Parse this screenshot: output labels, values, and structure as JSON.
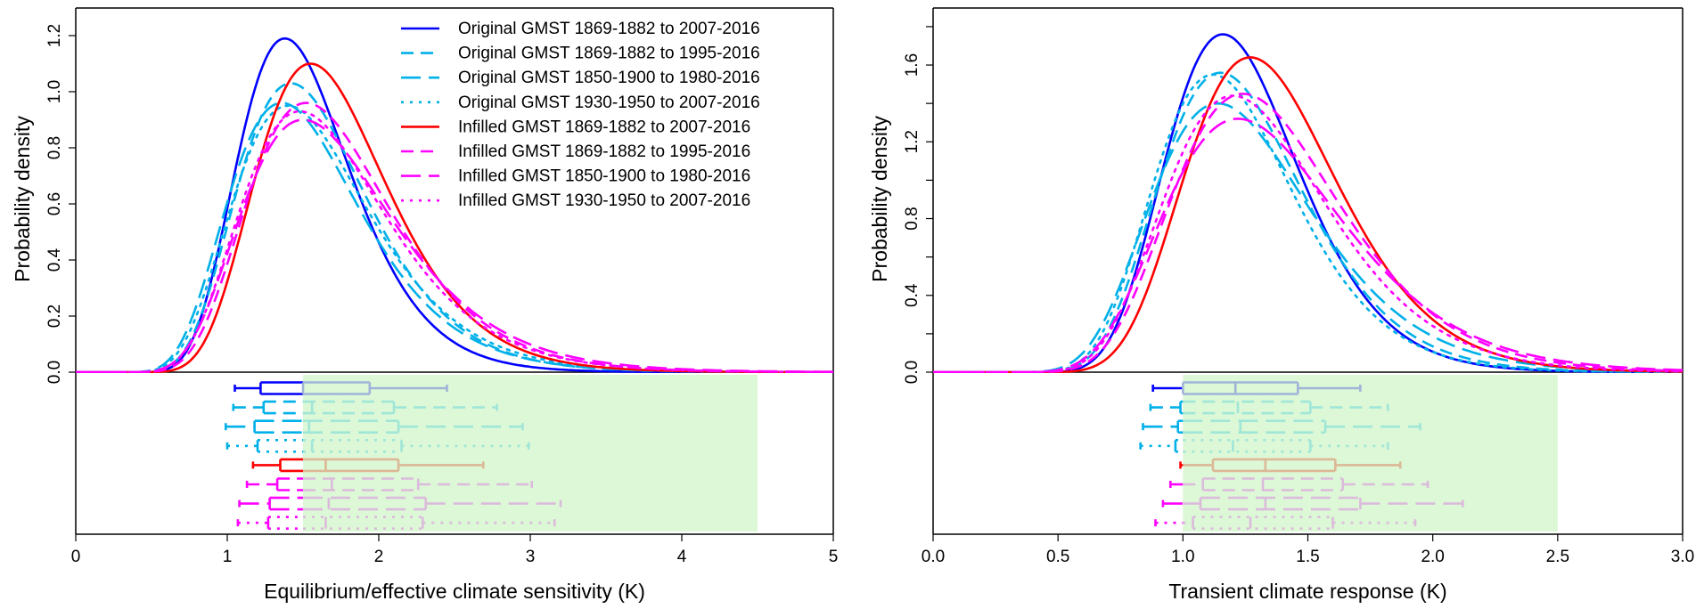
{
  "chart_data": [
    {
      "type": "line",
      "panel": "left",
      "title": "",
      "xlabel": "Equilibrium/effective climate sensitivity (K)",
      "ylabel": "Probability density",
      "xlim": [
        0,
        5
      ],
      "ylim": [
        0,
        1.28
      ],
      "xticks": [
        "0",
        "1",
        "2",
        "3",
        "4",
        "5"
      ],
      "xtick_values": [
        0,
        1,
        2,
        3,
        4,
        5
      ],
      "yticks": [
        "0.0",
        "0.2",
        "0.4",
        "0.6",
        "0.8",
        "1.0",
        "1.2"
      ],
      "ytick_values": [
        0,
        0.2,
        0.4,
        0.6,
        0.8,
        1.0,
        1.2
      ],
      "legend_position": "top-right",
      "likely_range_shading": {
        "from": 1.5,
        "to": 4.5,
        "color": "#dcf8d6"
      },
      "series": [
        {
          "name": "Original GMST 1869-1882 to 2007-2016",
          "color": "#0000ff",
          "dash": "solid",
          "mode": 1.38,
          "peak": 1.19,
          "shape": 0.27,
          "box": {
            "lo": 1.05,
            "q1": 1.22,
            "med": 1.5,
            "q3": 1.94,
            "hi": 2.45
          }
        },
        {
          "name": "Original GMST 1869-1882 to 1995-2016",
          "color": "#00b0e8",
          "dash": "dashed",
          "mode": 1.42,
          "peak": 1.03,
          "shape": 0.3,
          "box": {
            "lo": 1.04,
            "q1": 1.24,
            "med": 1.56,
            "q3": 2.1,
            "hi": 2.78
          }
        },
        {
          "name": "Original GMST 1850-1900 to 1980-2016",
          "color": "#00b0e8",
          "dash": "longdash",
          "mode": 1.36,
          "peak": 0.96,
          "shape": 0.32,
          "box": {
            "lo": 0.99,
            "q1": 1.18,
            "med": 1.54,
            "q3": 2.13,
            "hi": 2.95
          }
        },
        {
          "name": "Original GMST 1930-1950 to 2007-2016",
          "color": "#00b0e8",
          "dash": "dotted",
          "mode": 1.4,
          "peak": 0.95,
          "shape": 0.32,
          "box": {
            "lo": 1.0,
            "q1": 1.2,
            "med": 1.56,
            "q3": 2.15,
            "hi": 2.99
          }
        },
        {
          "name": "Infilled GMST 1869-1882 to 2007-2016",
          "color": "#ff0000",
          "dash": "solid",
          "mode": 1.55,
          "peak": 1.1,
          "shape": 0.28,
          "box": {
            "lo": 1.17,
            "q1": 1.35,
            "med": 1.65,
            "q3": 2.13,
            "hi": 2.69
          }
        },
        {
          "name": "Infilled GMST 1869-1882 to 1995-2016",
          "color": "#ff00ff",
          "dash": "dashed",
          "mode": 1.52,
          "peak": 0.96,
          "shape": 0.31,
          "box": {
            "lo": 1.13,
            "q1": 1.33,
            "med": 1.69,
            "q3": 2.26,
            "hi": 3.01
          }
        },
        {
          "name": "Infilled GMST 1850-1900 to 1980-2016",
          "color": "#ff00ff",
          "dash": "longdash",
          "mode": 1.5,
          "peak": 0.9,
          "shape": 0.33,
          "box": {
            "lo": 1.08,
            "q1": 1.28,
            "med": 1.67,
            "q3": 2.31,
            "hi": 3.2
          }
        },
        {
          "name": "Infilled GMST 1930-1950 to 2007-2016",
          "color": "#ff00ff",
          "dash": "dotted",
          "mode": 1.48,
          "peak": 0.93,
          "shape": 0.32,
          "box": {
            "lo": 1.07,
            "q1": 1.27,
            "med": 1.65,
            "q3": 2.29,
            "hi": 3.16
          }
        }
      ]
    },
    {
      "type": "line",
      "panel": "right",
      "title": "",
      "xlabel": "Transient climate response (K)",
      "ylabel": "Probability density",
      "xlim": [
        0,
        3
      ],
      "ylim": [
        0,
        1.85
      ],
      "xticks": [
        "0.0",
        "0.5",
        "1.0",
        "1.5",
        "2.0",
        "2.5",
        "3.0"
      ],
      "xtick_values": [
        0,
        0.5,
        1.0,
        1.5,
        2.0,
        2.5,
        3.0
      ],
      "yticks": [
        "0.0",
        "",
        "0.4",
        "",
        "0.8",
        "",
        "1.2",
        "",
        "1.6",
        ""
      ],
      "ytick_values": [
        0,
        0.2,
        0.4,
        0.6,
        0.8,
        1.0,
        1.2,
        1.4,
        1.6,
        1.8
      ],
      "likely_range_shading": {
        "from": 1.0,
        "to": 2.5,
        "color": "#dcf8d6"
      },
      "series": [
        {
          "name": "Original GMST 1869-1882 to 2007-2016",
          "color": "#0000ff",
          "dash": "solid",
          "mode": 1.16,
          "peak": 1.76,
          "shape": 0.23,
          "box": {
            "lo": 0.88,
            "q1": 1.0,
            "med": 1.21,
            "q3": 1.46,
            "hi": 1.71
          }
        },
        {
          "name": "Original GMST 1869-1882 to 1995-2016",
          "color": "#00b0e8",
          "dash": "dashed",
          "mode": 1.15,
          "peak": 1.56,
          "shape": 0.25,
          "box": {
            "lo": 0.87,
            "q1": 0.99,
            "med": 1.22,
            "q3": 1.51,
            "hi": 1.82
          }
        },
        {
          "name": "Original GMST 1850-1900 to 1980-2016",
          "color": "#00b0e8",
          "dash": "longdash",
          "mode": 1.14,
          "peak": 1.4,
          "shape": 0.28,
          "box": {
            "lo": 0.84,
            "q1": 0.98,
            "med": 1.23,
            "q3": 1.57,
            "hi": 1.95
          }
        },
        {
          "name": "Original GMST 1930-1950 to 2007-2016",
          "color": "#00b0e8",
          "dash": "dotted",
          "mode": 1.12,
          "peak": 1.55,
          "shape": 0.25,
          "box": {
            "lo": 0.83,
            "q1": 0.97,
            "med": 1.2,
            "q3": 1.51,
            "hi": 1.82
          }
        },
        {
          "name": "Infilled GMST 1869-1882 to 2007-2016",
          "color": "#ff0000",
          "dash": "solid",
          "mode": 1.27,
          "peak": 1.64,
          "shape": 0.24,
          "box": {
            "lo": 0.99,
            "q1": 1.12,
            "med": 1.33,
            "q3": 1.61,
            "hi": 1.87
          }
        },
        {
          "name": "Infilled GMST 1869-1882 to 1995-2016",
          "color": "#ff00ff",
          "dash": "dashed",
          "mode": 1.24,
          "peak": 1.45,
          "shape": 0.27,
          "box": {
            "lo": 0.95,
            "q1": 1.08,
            "med": 1.32,
            "q3": 1.64,
            "hi": 1.98
          }
        },
        {
          "name": "Infilled GMST 1850-1900 to 1980-2016",
          "color": "#ff00ff",
          "dash": "longdash",
          "mode": 1.22,
          "peak": 1.32,
          "shape": 0.29,
          "box": {
            "lo": 0.92,
            "q1": 1.07,
            "med": 1.33,
            "q3": 1.71,
            "hi": 2.12
          }
        },
        {
          "name": "Infilled GMST 1930-1950 to 2007-2016",
          "color": "#ff00ff",
          "dash": "dotted",
          "mode": 1.2,
          "peak": 1.44,
          "shape": 0.27,
          "box": {
            "lo": 0.89,
            "q1": 1.04,
            "med": 1.27,
            "q3": 1.6,
            "hi": 1.93
          }
        }
      ]
    }
  ],
  "faded_colors": {
    "#0000ff": "#a0b4d8",
    "#00b0e8": "#a0e6d8",
    "#ff0000": "#dcb896",
    "#ff00ff": "#dcbadc"
  }
}
